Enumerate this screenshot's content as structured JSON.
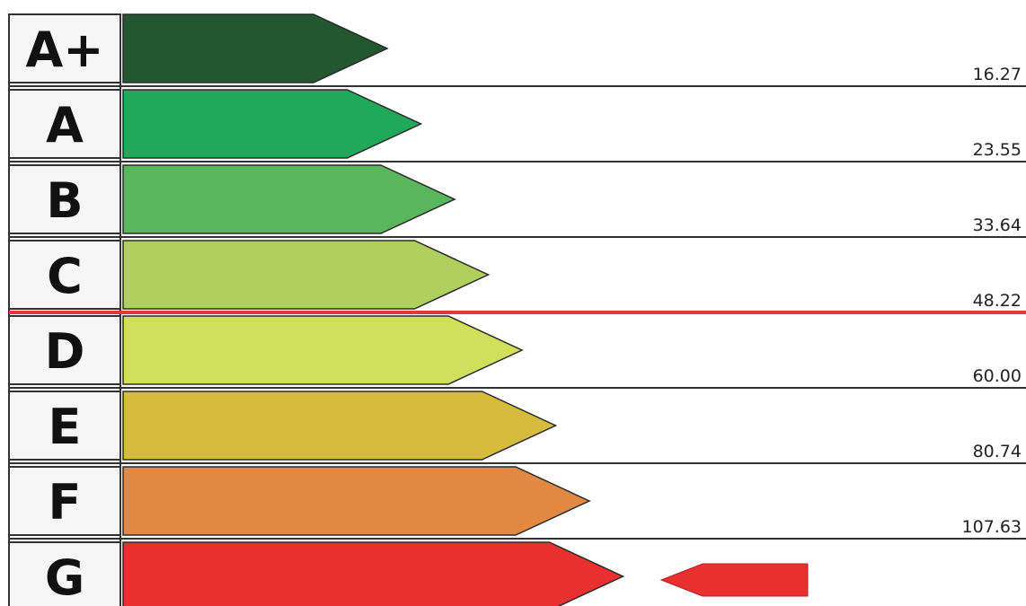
{
  "chart_data": {
    "type": "bar",
    "title": "",
    "categories": [
      "A+",
      "A",
      "B",
      "C",
      "D",
      "E",
      "F",
      "G"
    ],
    "colors": [
      "#23572f",
      "#22a85a",
      "#5ab65c",
      "#afd05c",
      "#d2df5b",
      "#d7bb3d",
      "#e28842",
      "#e8312f"
    ],
    "thresholds": [
      "16.27",
      "23.55",
      "33.64",
      "48.22",
      "60.00",
      "80.74",
      "107.63"
    ],
    "rated_class": "G",
    "reference_line": {
      "value": "48.22",
      "color": "#e8343c"
    },
    "grid": true,
    "legend": "none"
  }
}
